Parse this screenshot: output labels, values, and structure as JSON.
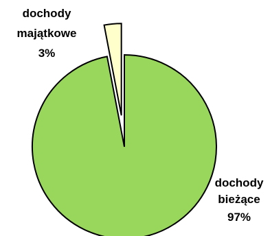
{
  "chart_data": {
    "type": "pie",
    "title": "",
    "slices": [
      {
        "label_lines": [
          "dochody",
          "majątkowe",
          "3%"
        ],
        "value": 3,
        "color": "#ffffcc",
        "exploded": true
      },
      {
        "label_lines": [
          "dochody",
          "bieżące",
          "97%"
        ],
        "value": 97,
        "color": "#99d65c",
        "exploded": false
      }
    ],
    "start_angle": "12 o'clock",
    "direction": "counterclockwise",
    "legend": "none",
    "outline_color": "#000000"
  }
}
